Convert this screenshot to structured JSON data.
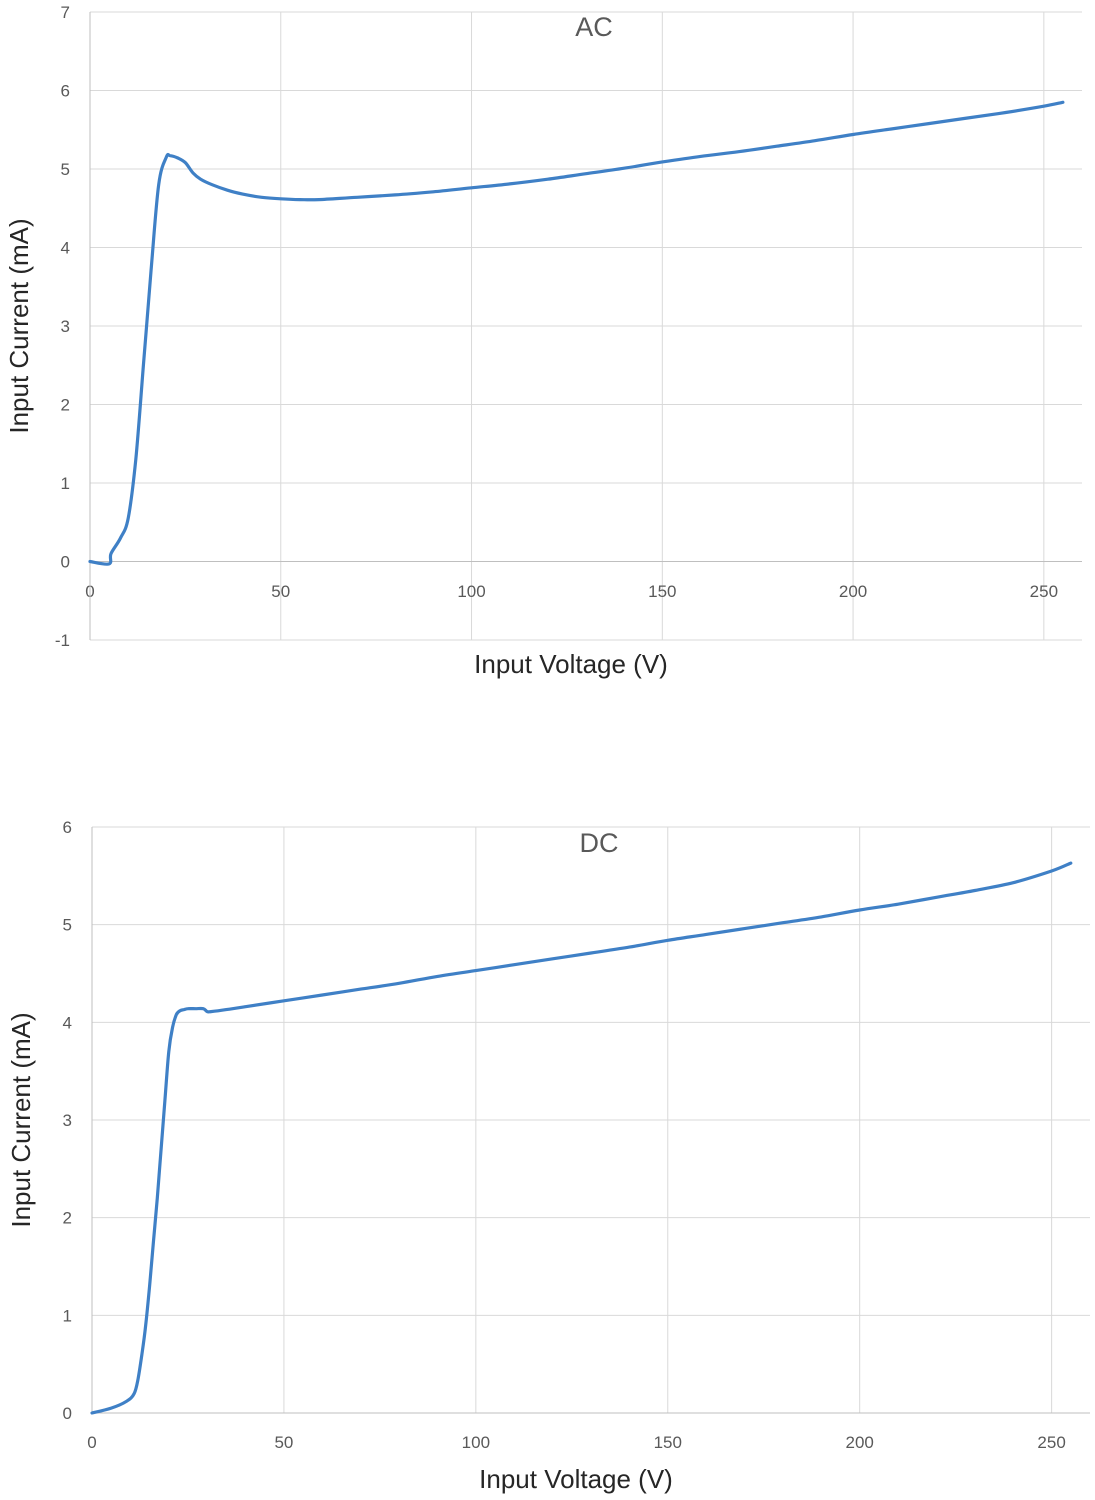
{
  "colors": {
    "series": "#3f80c6",
    "grid": "#d9d9d9",
    "tick_text": "#595959",
    "axis_title_text": "#262626"
  },
  "chart_data": [
    {
      "type": "line",
      "title": "AC",
      "xlabel": "Input Voltage (V)",
      "ylabel": "Input Current (mA)",
      "xlim": [
        0,
        260
      ],
      "ylim": [
        -1,
        7
      ],
      "x_ticks": [
        0,
        50,
        100,
        150,
        200,
        250
      ],
      "y_ticks": [
        -1,
        0,
        1,
        2,
        3,
        4,
        5,
        6,
        7
      ],
      "grid": true,
      "legend": "none",
      "series": [
        {
          "x": [
            0,
            5,
            5.5,
            8,
            10,
            12,
            14,
            16,
            18,
            20,
            21,
            23,
            25,
            27,
            29,
            32,
            36,
            40,
            45,
            50,
            55,
            60,
            70,
            80,
            90,
            100,
            110,
            120,
            130,
            140,
            150,
            160,
            170,
            180,
            190,
            200,
            210,
            220,
            230,
            240,
            250,
            255
          ],
          "values": [
            0,
            -0.03,
            0.1,
            0.3,
            0.55,
            1.3,
            2.5,
            3.7,
            4.8,
            5.15,
            5.17,
            5.14,
            5.08,
            4.95,
            4.87,
            4.8,
            4.73,
            4.68,
            4.64,
            4.62,
            4.61,
            4.61,
            4.64,
            4.67,
            4.71,
            4.76,
            4.81,
            4.87,
            4.94,
            5.01,
            5.09,
            5.16,
            5.22,
            5.29,
            5.36,
            5.44,
            5.51,
            5.58,
            5.65,
            5.72,
            5.8,
            5.85
          ]
        }
      ]
    },
    {
      "type": "line",
      "title": "DC",
      "xlabel": "Input Voltage (V)",
      "ylabel": "Input Current (mA)",
      "xlim": [
        0,
        260
      ],
      "ylim": [
        0,
        6
      ],
      "x_ticks": [
        0,
        50,
        100,
        150,
        200,
        250
      ],
      "y_ticks": [
        0,
        1,
        2,
        3,
        4,
        5,
        6
      ],
      "grid": true,
      "legend": "none",
      "series": [
        {
          "x": [
            0,
            5,
            9,
            11,
            12,
            13,
            14,
            15,
            16,
            17,
            18,
            19,
            20,
            21,
            22,
            23,
            24,
            25,
            27,
            29,
            30,
            31,
            35,
            40,
            50,
            60,
            70,
            80,
            90,
            100,
            110,
            120,
            130,
            140,
            150,
            160,
            170,
            180,
            190,
            200,
            210,
            220,
            230,
            240,
            250,
            255
          ],
          "values": [
            0,
            0.05,
            0.12,
            0.2,
            0.35,
            0.6,
            0.9,
            1.3,
            1.75,
            2.2,
            2.7,
            3.2,
            3.7,
            3.95,
            4.08,
            4.12,
            4.13,
            4.14,
            4.14,
            4.14,
            4.11,
            4.11,
            4.13,
            4.16,
            4.22,
            4.28,
            4.34,
            4.4,
            4.47,
            4.53,
            4.59,
            4.65,
            4.71,
            4.77,
            4.84,
            4.9,
            4.96,
            5.02,
            5.08,
            5.15,
            5.21,
            5.28,
            5.35,
            5.43,
            5.55,
            5.63
          ]
        }
      ]
    }
  ]
}
